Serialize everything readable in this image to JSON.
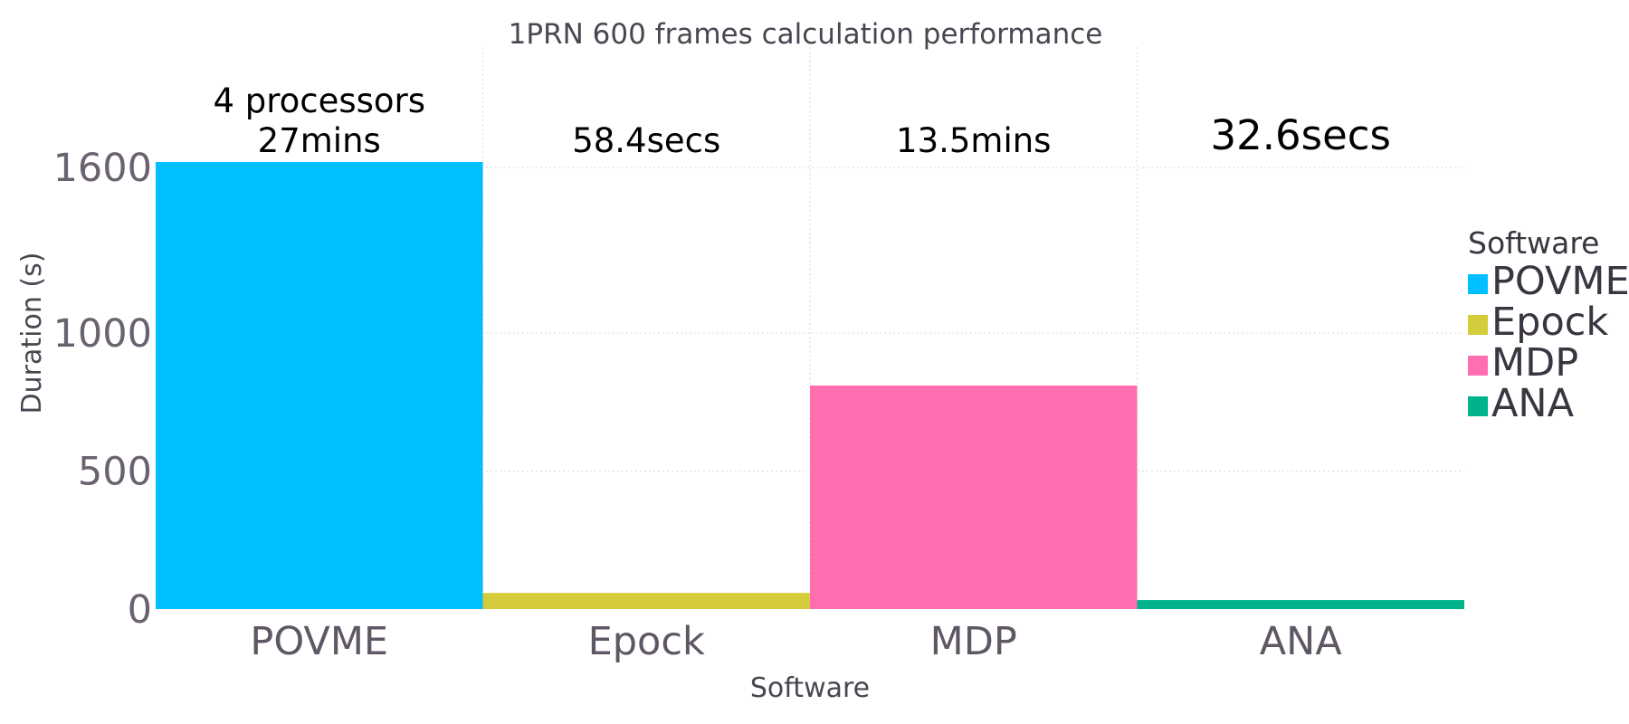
{
  "chart_data": {
    "type": "bar",
    "title": "1PRN 600 frames calculation performance",
    "xlabel": "Software",
    "ylabel": "Duration (s)",
    "categories": [
      "POVME",
      "Epock",
      "MDP",
      "ANA"
    ],
    "values": [
      1620,
      58.4,
      810,
      32.6
    ],
    "colors": [
      "#00bfff",
      "#d4cc3a",
      "#ff6eae",
      "#00b38a"
    ],
    "annotations": [
      [
        "4 processors",
        "27mins"
      ],
      [
        "58.4secs"
      ],
      [
        "13.5mins"
      ],
      [
        "32.6secs"
      ]
    ],
    "yticks": [
      0,
      500,
      1000,
      1600
    ],
    "ylim": [
      0,
      1620
    ],
    "grid": true,
    "legend": {
      "title": "Software",
      "position": "right",
      "items": [
        "POVME",
        "Epock",
        "MDP",
        "ANA"
      ]
    }
  }
}
